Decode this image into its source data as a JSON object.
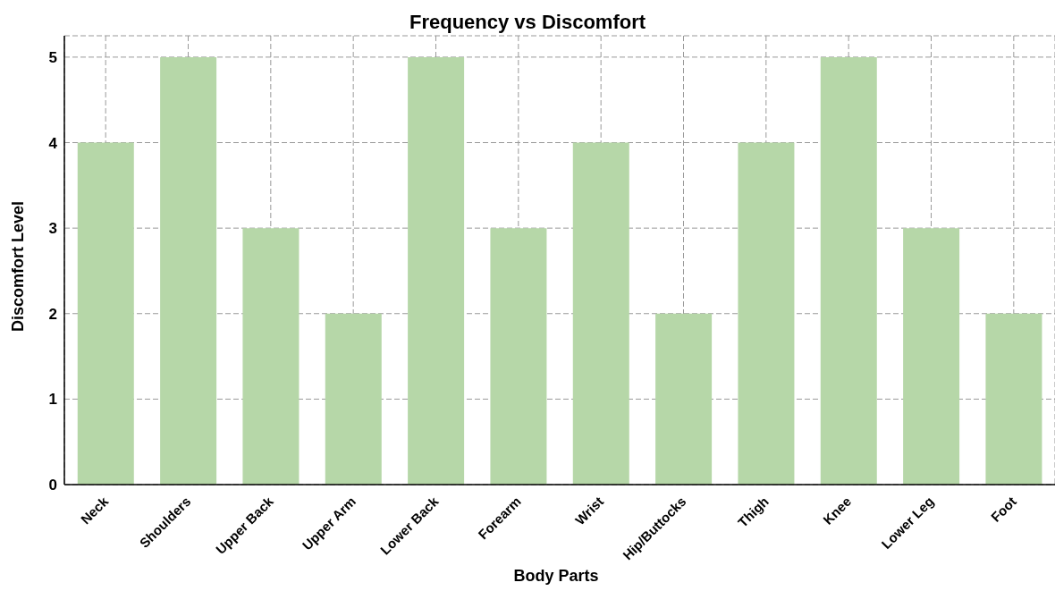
{
  "chart_data": {
    "type": "bar",
    "title": "Frequency vs Discomfort",
    "xlabel": "Body Parts",
    "ylabel": "Discomfort Level",
    "categories": [
      "Neck",
      "Shoulders",
      "Upper Back",
      "Upper Arm",
      "Lower Back",
      "Forearm",
      "Wrist",
      "Hip/Buttocks",
      "Thigh",
      "Knee",
      "Lower Leg",
      "Foot"
    ],
    "values": [
      4,
      5,
      3,
      2,
      5,
      3,
      4,
      2,
      4,
      5,
      3,
      2
    ],
    "color": "#b6d7a8",
    "ylim": [
      0,
      5.25
    ],
    "yticks": [
      0,
      1,
      2,
      3,
      4,
      5
    ],
    "grid": true
  }
}
